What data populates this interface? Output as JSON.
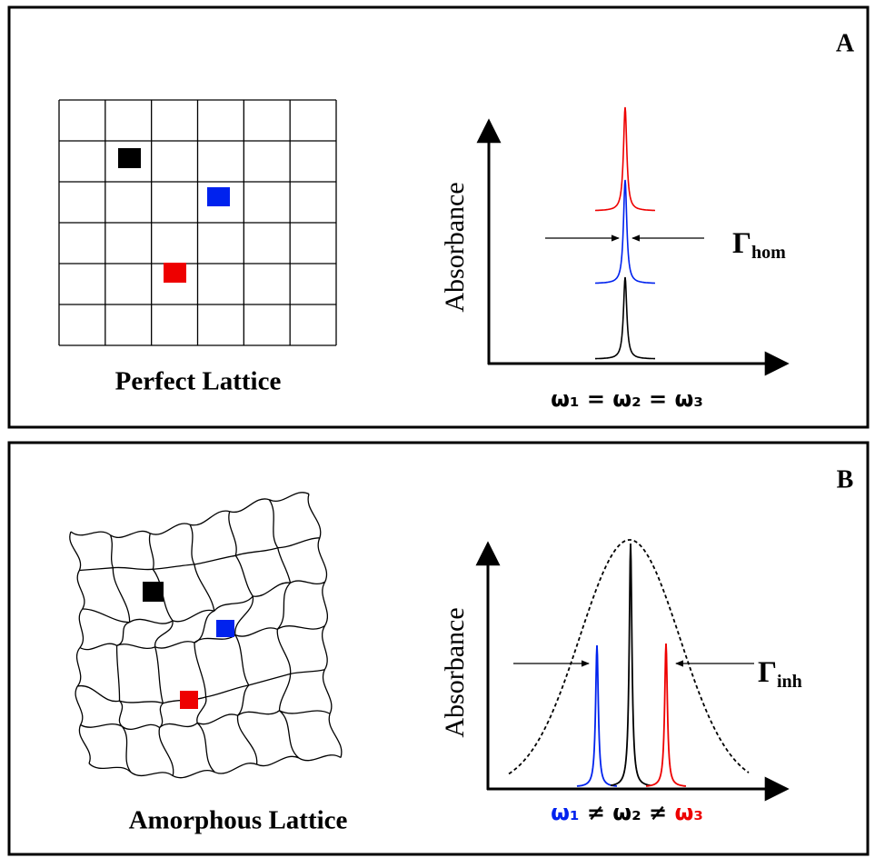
{
  "panels": [
    {
      "letter": "A",
      "lattice_label": "Perfect Lattice",
      "y_axis_label": "Absorbance",
      "gamma_symbol": "Γ",
      "gamma_subscript": "hom",
      "x_label_parts": [
        "ω₁ = ω₂ = ω₃"
      ]
    },
    {
      "letter": "B",
      "lattice_label": "Amorphous Lattice",
      "y_axis_label": "Absorbance",
      "gamma_symbol": "Γ",
      "gamma_subscript": "inh",
      "x_label_parts": [
        "ω₁",
        " ≠ ω₂ ≠ ",
        "ω₃"
      ]
    }
  ]
}
